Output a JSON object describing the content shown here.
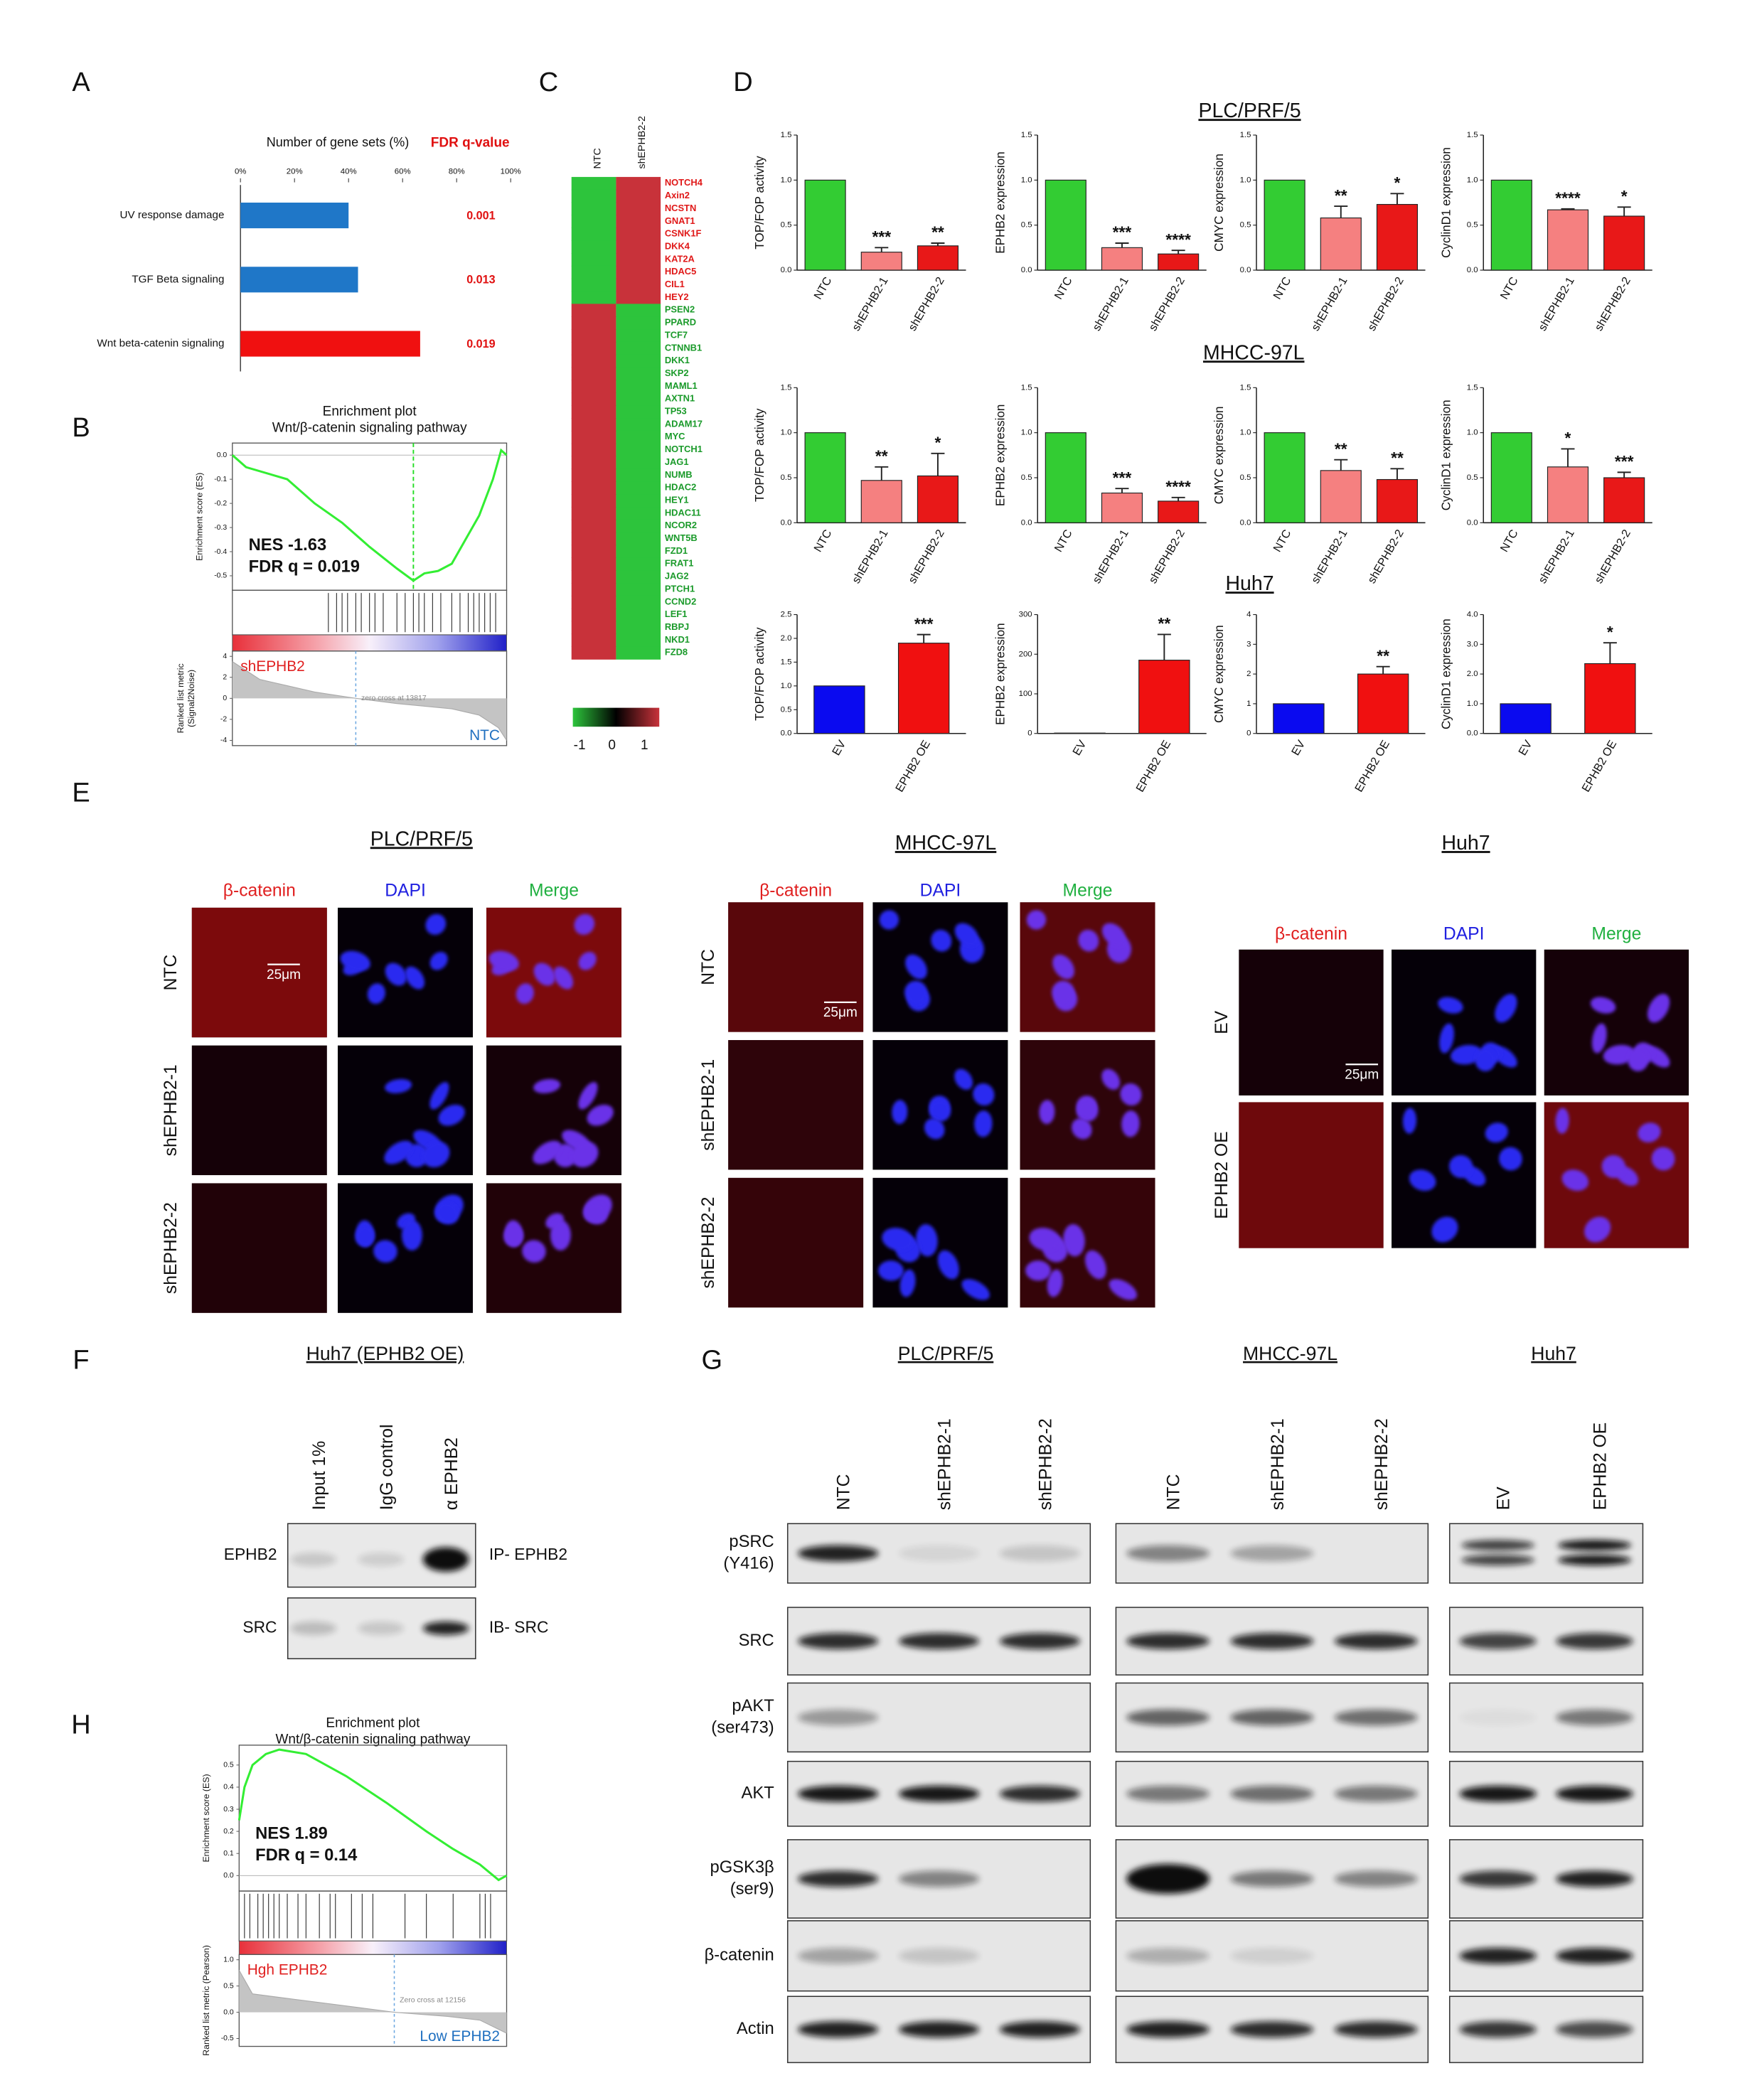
{
  "panel_labels": [
    "A",
    "B",
    "C",
    "D",
    "E",
    "F",
    "G",
    "H"
  ],
  "panel_a": {
    "type": "bar",
    "title": "Number of gene sets (%)",
    "fdr_title": "FDR q-value",
    "categories": [
      "UV response damage",
      "TGF Beta signaling",
      "Wnt beta-catenin signaling"
    ],
    "values": [
      40,
      43.5,
      66.5
    ],
    "colors": [
      "#1f77c8",
      "#1f77c8",
      "#f01010"
    ],
    "fdr_labels": [
      "0.001",
      "0.013",
      "0.019"
    ],
    "xlim": [
      0,
      100
    ],
    "xticks": [
      {
        "value": 0,
        "label": "0%"
      },
      {
        "value": 20,
        "label": "20%"
      },
      {
        "value": 40,
        "label": "40%"
      },
      {
        "value": 60,
        "label": "60%"
      },
      {
        "value": 80,
        "label": "80%"
      },
      {
        "value": 100,
        "label": "100%"
      }
    ]
  },
  "panel_b": {
    "type": "line",
    "title": "Enrichment plot",
    "subtitle": "Wnt/β-catenin signaling pathway",
    "ylabel": "Enrichment score (ES)",
    "nes": "NES -1.63",
    "fdr": "FDR q = 0.019",
    "x": [
      0,
      0.05,
      0.2,
      0.3,
      0.4,
      0.5,
      0.6,
      0.66,
      0.7,
      0.75,
      0.8,
      0.85,
      0.9,
      0.95,
      0.98,
      1
    ],
    "es": [
      0,
      -0.05,
      -0.1,
      -0.2,
      -0.28,
      -0.38,
      -0.47,
      -0.52,
      -0.49,
      -0.48,
      -0.45,
      -0.35,
      -0.25,
      -0.1,
      0.02,
      0
    ],
    "ylim": [
      -0.56,
      0.05
    ],
    "yticks": [
      {
        "value": 0,
        "label": "0.0"
      },
      -0.1,
      -0.2,
      -0.3,
      -0.4,
      -0.5
    ],
    "metric_label": [
      "Ranked list metric",
      "(Signal2Noise)"
    ],
    "metric_x": [
      0,
      0.1,
      0.2,
      0.3,
      0.45,
      0.6,
      0.8,
      0.9,
      0.97,
      1
    ],
    "metric": [
      3.5,
      1.8,
      1.2,
      0.6,
      0,
      -0.5,
      -1,
      -1.6,
      -2.8,
      -4
    ],
    "metric_ylim": [
      -4.5,
      4.5
    ],
    "metric_ticks": [
      4,
      2,
      0,
      -2,
      -4
    ],
    "high_label": "shEPHB2",
    "low_label": "NTC",
    "zero_cross": "zero cross at 13817"
  },
  "panel_c": {
    "type": "heatmap",
    "columns": [
      "NTC",
      "shEPHB2-2"
    ],
    "up_genes": [
      "NOTCH4",
      "Axin2",
      "NCSTN",
      "GNAT1",
      "CSNK1F",
      "DKK4",
      "KAT2A",
      "HDAC5",
      "CIL1",
      "HEY2"
    ],
    "down_genes": [
      "PSEN2",
      "PPARD",
      "TCF7",
      "CTNNB1",
      "DKK1",
      "SKP2",
      "MAML1",
      "AXTN1",
      "TP53",
      "ADAM17",
      "MYC",
      "NOTCH1",
      "JAG1",
      "NUMB",
      "HDAC2",
      "HEY1",
      "HDAC11",
      "NCOR2",
      "WNT5B",
      "FZD1",
      "FRAT1",
      "JAG2",
      "PTCH1",
      "CCND2",
      "LEF1",
      "RBPJ",
      "NKD1",
      "FZD8"
    ],
    "up_values": [
      -1,
      1
    ],
    "down_values": [
      1,
      -1
    ],
    "scale_ticks": [
      -1,
      0,
      1
    ],
    "colors": {
      "low": "#2dc43c",
      "mid": "#000000",
      "high": "#c8323a"
    }
  },
  "panel_d": {
    "titles": [
      "PLC/PRF/5",
      "MHCC-97L",
      "Huh7"
    ],
    "charts": [
      {
        "type": "bar",
        "ylabel": "TOP/FOP activity",
        "categories": [
          "NTC",
          "shEPHB2-1",
          "shEPHB2-2"
        ],
        "values": [
          1.0,
          0.2,
          0.27
        ],
        "errors": [
          null,
          0.05,
          0.03
        ],
        "stars": [
          null,
          "***",
          "**"
        ],
        "colors": [
          "#33cc33",
          "#f58080",
          "#e81818"
        ],
        "ylim": [
          0,
          1.5
        ],
        "yticks": [
          {
            "value": 0,
            "label": "0.0"
          },
          0.5,
          {
            "value": 1,
            "label": "1.0"
          },
          1.5
        ]
      },
      {
        "type": "bar",
        "ylabel": "EPHB2 expression",
        "categories": [
          "NTC",
          "shEPHB2-1",
          "shEPHB2-2"
        ],
        "values": [
          1.0,
          0.25,
          0.18
        ],
        "errors": [
          null,
          0.05,
          0.04
        ],
        "stars": [
          null,
          "***",
          "****"
        ],
        "colors": [
          "#33cc33",
          "#f58080",
          "#e81818"
        ],
        "ylim": [
          0,
          1.5
        ],
        "yticks": [
          {
            "value": 0,
            "label": "0.0"
          },
          0.5,
          {
            "value": 1,
            "label": "1.0"
          },
          1.5
        ]
      },
      {
        "type": "bar",
        "ylabel": "CMYC expression",
        "categories": [
          "NTC",
          "shEPHB2-1",
          "shEPHB2-2"
        ],
        "values": [
          1.0,
          0.58,
          0.73
        ],
        "errors": [
          null,
          0.13,
          0.12
        ],
        "stars": [
          null,
          "**",
          "*"
        ],
        "colors": [
          "#33cc33",
          "#f58080",
          "#e81818"
        ],
        "ylim": [
          0,
          1.5
        ],
        "yticks": [
          {
            "value": 0,
            "label": "0.0"
          },
          0.5,
          {
            "value": 1,
            "label": "1.0"
          },
          1.5
        ]
      },
      {
        "type": "bar",
        "ylabel": "CyclinD1 expression",
        "categories": [
          "NTC",
          "shEPHB2-1",
          "shEPHB2-2"
        ],
        "values": [
          1.0,
          0.67,
          0.6
        ],
        "errors": [
          null,
          0.01,
          0.1
        ],
        "stars": [
          null,
          "****",
          "*"
        ],
        "colors": [
          "#33cc33",
          "#f58080",
          "#e81818"
        ],
        "ylim": [
          0,
          1.5
        ],
        "yticks": [
          {
            "value": 0,
            "label": "0.0"
          },
          0.5,
          {
            "value": 1,
            "label": "1.0"
          },
          1.5
        ]
      },
      {
        "type": "bar",
        "ylabel": "TOP/FOP activity",
        "categories": [
          "NTC",
          "shEPHB2-1",
          "shEPHB2-2"
        ],
        "values": [
          1.0,
          0.47,
          0.52
        ],
        "errors": [
          null,
          0.15,
          0.25
        ],
        "stars": [
          null,
          "**",
          "*"
        ],
        "colors": [
          "#33cc33",
          "#f58080",
          "#e81818"
        ],
        "ylim": [
          0,
          1.5
        ],
        "yticks": [
          {
            "value": 0,
            "label": "0.0"
          },
          0.5,
          {
            "value": 1,
            "label": "1.0"
          },
          1.5
        ]
      },
      {
        "type": "bar",
        "ylabel": "EPHB2 expression",
        "categories": [
          "NTC",
          "shEPHB2-1",
          "shEPHB2-2"
        ],
        "values": [
          1.0,
          0.33,
          0.24
        ],
        "errors": [
          null,
          0.05,
          0.04
        ],
        "stars": [
          null,
          "***",
          "****"
        ],
        "colors": [
          "#33cc33",
          "#f58080",
          "#e81818"
        ],
        "ylim": [
          0,
          1.5
        ],
        "yticks": [
          {
            "value": 0,
            "label": "0.0"
          },
          0.5,
          {
            "value": 1,
            "label": "1.0"
          },
          1.5
        ]
      },
      {
        "type": "bar",
        "ylabel": "CMYC expression",
        "categories": [
          "NTC",
          "shEPHB2-1",
          "shEPHB2-2"
        ],
        "values": [
          1.0,
          0.58,
          0.48
        ],
        "errors": [
          null,
          0.12,
          0.12
        ],
        "stars": [
          null,
          "**",
          "**"
        ],
        "colors": [
          "#33cc33",
          "#f58080",
          "#e81818"
        ],
        "ylim": [
          0,
          1.5
        ],
        "yticks": [
          {
            "value": 0,
            "label": "0.0"
          },
          0.5,
          {
            "value": 1,
            "label": "1.0"
          },
          1.5
        ]
      },
      {
        "type": "bar",
        "ylabel": "CyclinD1 expression",
        "categories": [
          "NTC",
          "shEPHB2-1",
          "shEPHB2-2"
        ],
        "values": [
          1.0,
          0.62,
          0.5
        ],
        "errors": [
          null,
          0.2,
          0.06
        ],
        "stars": [
          null,
          "*",
          "***"
        ],
        "colors": [
          "#33cc33",
          "#f58080",
          "#e81818"
        ],
        "ylim": [
          0,
          1.5
        ],
        "yticks": [
          {
            "value": 0,
            "label": "0.0"
          },
          0.5,
          {
            "value": 1,
            "label": "1.0"
          },
          1.5
        ]
      },
      {
        "type": "bar",
        "ylabel": "TOP/FOP activity",
        "categories": [
          "EV",
          "EPHB2 OE"
        ],
        "values": [
          1.0,
          1.9
        ],
        "errors": [
          null,
          0.18
        ],
        "stars": [
          null,
          "***"
        ],
        "colors": [
          "#0a0af0",
          "#f01010"
        ],
        "ylim": [
          0,
          2.5
        ],
        "yticks": [
          {
            "value": 0,
            "label": "0.0"
          },
          0.5,
          {
            "value": 1,
            "label": "1.0"
          },
          1.5,
          {
            "value": 2,
            "label": "2.0"
          },
          2.5
        ]
      },
      {
        "type": "bar",
        "ylabel": "EPHB2 expression",
        "categories": [
          "EV",
          "EPHB2 OE"
        ],
        "values": [
          1,
          185
        ],
        "errors": [
          null,
          65
        ],
        "stars": [
          null,
          "**"
        ],
        "colors": [
          "#0a0af0",
          "#f01010"
        ],
        "ylim": [
          0,
          300
        ],
        "yticks": [
          0,
          100,
          200,
          300
        ]
      },
      {
        "type": "bar",
        "ylabel": "CMYC expression",
        "categories": [
          "EV",
          "EPHB2 OE"
        ],
        "values": [
          1.0,
          2.0
        ],
        "errors": [
          null,
          0.25
        ],
        "stars": [
          null,
          "**"
        ],
        "colors": [
          "#0a0af0",
          "#f01010"
        ],
        "ylim": [
          0,
          4
        ],
        "yticks": [
          0,
          1,
          2,
          3,
          4
        ]
      },
      {
        "type": "bar",
        "ylabel": "CyclinD1 expression",
        "categories": [
          "EV",
          "EPHB2 OE"
        ],
        "values": [
          1.0,
          2.35
        ],
        "errors": [
          null,
          0.7
        ],
        "stars": [
          null,
          "*"
        ],
        "colors": [
          "#0a0af0",
          "#f01010"
        ],
        "ylim": [
          0,
          4
        ],
        "yticks": [
          {
            "value": 0,
            "label": "0.0"
          },
          {
            "value": 1,
            "label": "1.0"
          },
          {
            "value": 2,
            "label": "2.0"
          },
          {
            "value": 3,
            "label": "3.0"
          },
          {
            "value": 4,
            "label": "4.0"
          }
        ]
      }
    ]
  },
  "panel_e": {
    "groups": [
      {
        "title": "PLC/PRF/5",
        "columns": [
          "β-catenin",
          "DAPI",
          "Merge"
        ],
        "rows": [
          "NTC",
          "shEPHB2-1",
          "shEPHB2-2"
        ],
        "scale": "25μm"
      },
      {
        "title": "MHCC-97L",
        "columns": [
          "β-catenin",
          "DAPI",
          "Merge"
        ],
        "rows": [
          "NTC",
          "shEPHB2-1",
          "shEPHB2-2"
        ],
        "scale": "25μm"
      },
      {
        "title": "Huh7",
        "columns": [
          "β-catenin",
          "DAPI",
          "Merge"
        ],
        "rows": [
          "EV",
          "EPHB2 OE"
        ],
        "scale": "25μm"
      }
    ]
  },
  "panel_f": {
    "title": "Huh7 (EPHB2 OE)",
    "lanes": [
      "Input 1%",
      "IgG control",
      "α EPHB2"
    ],
    "rows": [
      "EPHB2",
      "SRC"
    ],
    "right_labels": [
      "IP- EPHB2",
      "IB- SRC"
    ]
  },
  "panel_g": {
    "groups": [
      {
        "title": "PLC/PRF/5",
        "lanes": [
          "NTC",
          "shEPHB2-1",
          "shEPHB2-2"
        ]
      },
      {
        "title": "MHCC-97L",
        "lanes": [
          "NTC",
          "shEPHB2-1",
          "shEPHB2-2"
        ]
      },
      {
        "title": "Huh7",
        "lanes": [
          "EV",
          "EPHB2 OE"
        ]
      }
    ],
    "rows": [
      [
        "pSRC",
        "(Y416)"
      ],
      [
        "SRC"
      ],
      [
        "pAKT",
        "(ser473)"
      ],
      [
        "AKT"
      ],
      [
        "pGSK3β",
        "(ser9)"
      ],
      [
        "β-catenin"
      ],
      [
        "Actin"
      ]
    ]
  },
  "panel_h": {
    "type": "line",
    "title": "Enrichment plot",
    "subtitle": "Wnt/β-catenin signaling pathway",
    "ylabel": "Enrichment score (ES)",
    "nes": "NES 1.89",
    "fdr": "FDR q = 0.14",
    "x": [
      0,
      0.02,
      0.05,
      0.1,
      0.15,
      0.25,
      0.4,
      0.55,
      0.7,
      0.8,
      0.9,
      0.95,
      0.97,
      1
    ],
    "es": [
      0.25,
      0.4,
      0.5,
      0.55,
      0.57,
      0.55,
      0.45,
      0.33,
      0.2,
      0.12,
      0.05,
      0,
      -0.02,
      0
    ],
    "ylim": [
      -0.07,
      0.59
    ],
    "yticks": [
      {
        "value": 0,
        "label": "0.0"
      },
      0.1,
      0.2,
      0.3,
      0.4,
      0.5
    ],
    "metric_label": [
      "Ranked list metric (Pearson)"
    ],
    "metric_x": [
      0,
      0.05,
      0.2,
      0.4,
      0.58,
      0.78,
      0.9,
      1
    ],
    "metric": [
      0.8,
      0.35,
      0.25,
      0.12,
      0,
      -0.08,
      -0.15,
      -0.4
    ],
    "metric_ylim": [
      -0.65,
      1.1
    ],
    "metric_ticks": [
      {
        "value": 1,
        "label": "1.0"
      },
      0.5,
      {
        "value": 0,
        "label": "0.0"
      },
      -0.5
    ],
    "high_label": "Hgh EPHB2",
    "low_label": "Low EPHB2",
    "zero_cross": "Zero cross at 12156"
  }
}
